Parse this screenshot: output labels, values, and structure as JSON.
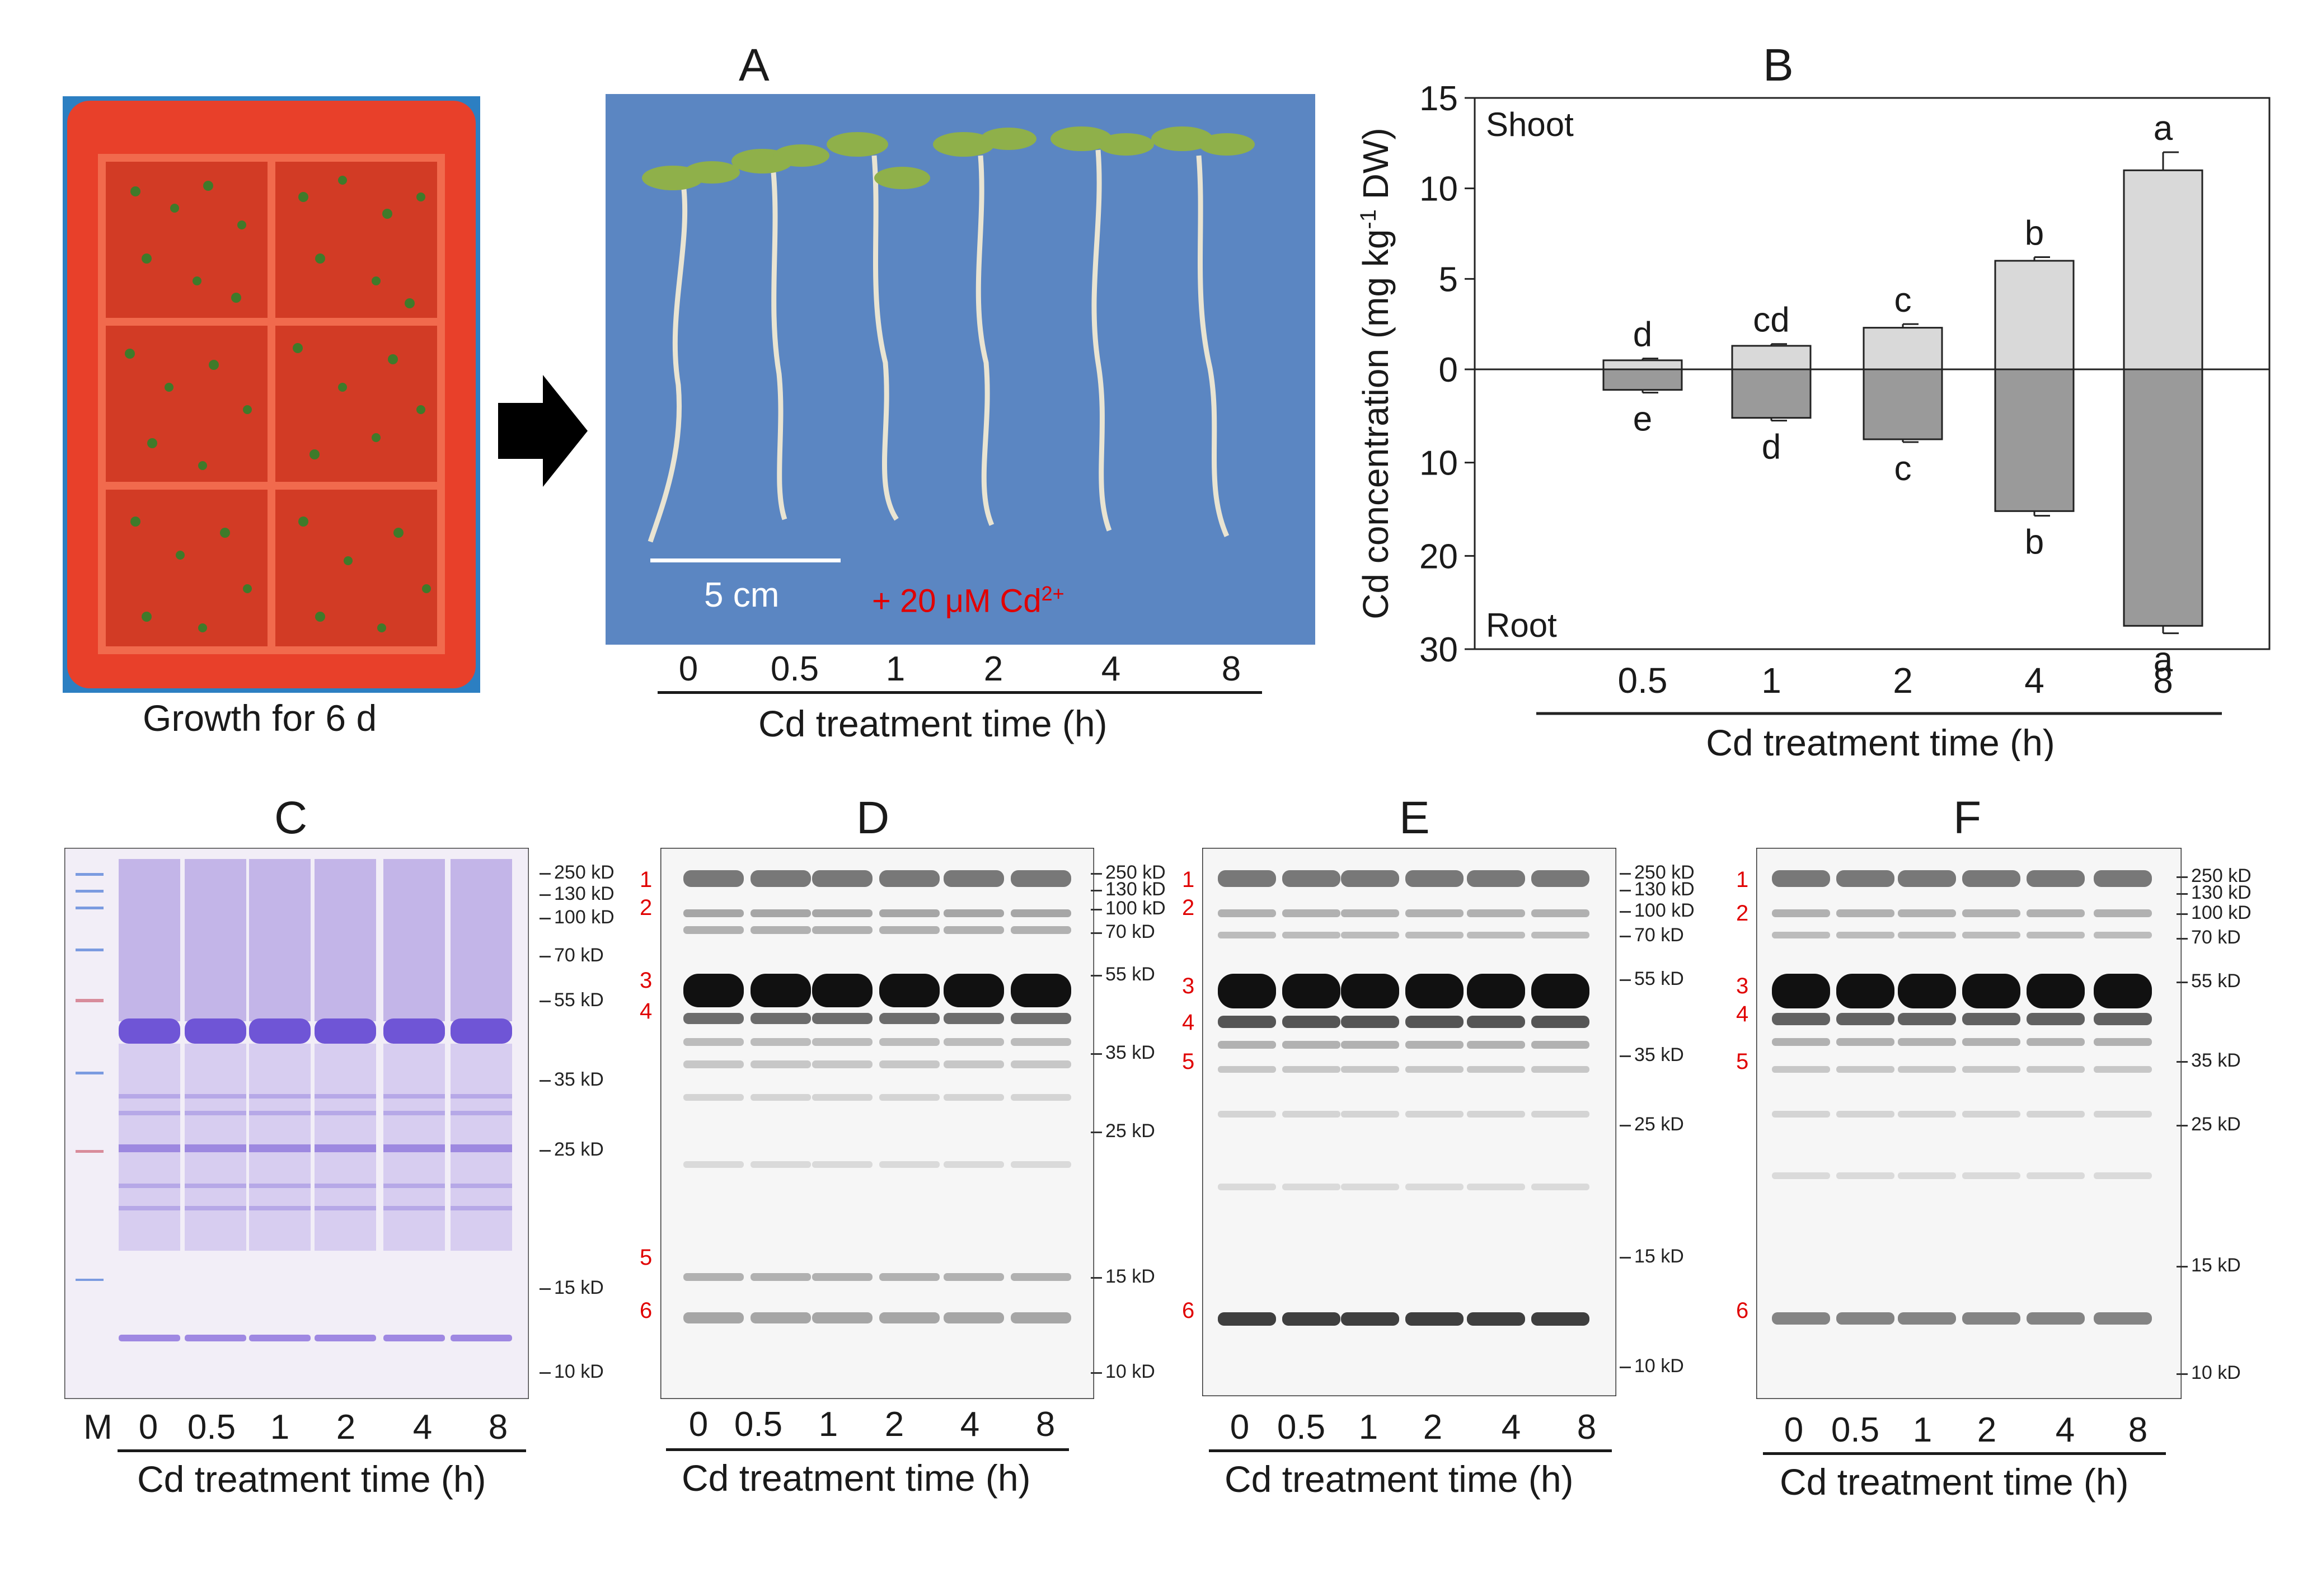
{
  "figure": {
    "tray_caption": "Growth for 6 d",
    "panels": {
      "A": {
        "letter": "A",
        "scale_bar": "5 cm",
        "treatment_text": "+ 20 μM Cd",
        "treatment_sup": "2+",
        "times": [
          "0",
          "0.5",
          "1",
          "2",
          "4",
          "8"
        ],
        "xlabel": "Cd treatment time (h)"
      },
      "B": {
        "letter": "B"
      },
      "C": {
        "letter": "C",
        "lanes": [
          "M",
          "0",
          "0.5",
          "1",
          "2",
          "4",
          "8"
        ],
        "xlabel": "Cd treatment time (h)",
        "markers": [
          "250 kD",
          "130 kD",
          "100 kD",
          "70 kD",
          "55 kD",
          "35 kD",
          "25 kD",
          "15 kD",
          "10 kD"
        ]
      },
      "D": {
        "letter": "D",
        "lanes": [
          "0",
          "0.5",
          "1",
          "2",
          "4",
          "8"
        ],
        "xlabel": "Cd treatment time (h)",
        "markers": [
          "250 kD",
          "130 kD",
          "100 kD",
          "70 kD",
          "55 kD",
          "35 kD",
          "25 kD",
          "15 kD",
          "10 kD"
        ],
        "band_numbers": [
          "1",
          "2",
          "3",
          "4",
          "5",
          "6"
        ]
      },
      "E": {
        "letter": "E",
        "lanes": [
          "0",
          "0.5",
          "1",
          "2",
          "4",
          "8"
        ],
        "xlabel": "Cd treatment time (h)",
        "markers": [
          "250 kD",
          "130 kD",
          "100 kD",
          "70 kD",
          "55 kD",
          "35 kD",
          "25 kD",
          "15 kD",
          "10 kD"
        ],
        "band_numbers": [
          "1",
          "2",
          "3",
          "4",
          "5",
          "6"
        ]
      },
      "F": {
        "letter": "F",
        "lanes": [
          "0",
          "0.5",
          "1",
          "2",
          "4",
          "8"
        ],
        "xlabel": "Cd treatment time (h)",
        "markers": [
          "250 kD",
          "130 kD",
          "100 kD",
          "70 kD",
          "55 kD",
          "35 kD",
          "25 kD",
          "15 kD",
          "10 kD"
        ],
        "band_numbers": [
          "1",
          "2",
          "3",
          "4",
          "5",
          "6"
        ]
      }
    }
  },
  "chart_data": {
    "type": "bar",
    "title": "B",
    "categories": [
      "0.5",
      "1",
      "2",
      "4",
      "8"
    ],
    "xlabel": "Cd treatment time (h)",
    "ylabel": "Cd concentration (mg kg-1 DW)",
    "ylabel_parts": {
      "pre": "Cd concentration (mg kg",
      "sup": "-1",
      "post": " DW)"
    },
    "region_labels": {
      "top": "Shoot",
      "bottom": "Root"
    },
    "shoot_ylim": [
      0,
      15
    ],
    "root_ylim": [
      0,
      30
    ],
    "shoot_ticks": [
      "0",
      "5",
      "10",
      "15"
    ],
    "root_ticks": [
      "10",
      "20",
      "30"
    ],
    "series": [
      {
        "name": "Shoot",
        "color": "#d9d9d9",
        "values": [
          0.5,
          1.3,
          2.3,
          6.0,
          11.0
        ],
        "errors": [
          0.1,
          0.1,
          0.2,
          0.2,
          1.0
        ],
        "letters": [
          "d",
          "cd",
          "c",
          "b",
          "a"
        ]
      },
      {
        "name": "Root",
        "color": "#9a9a9a",
        "values": [
          2.2,
          5.2,
          7.5,
          15.2,
          27.5
        ],
        "errors": [
          0.3,
          0.3,
          0.3,
          0.5,
          0.8
        ],
        "letters": [
          "e",
          "d",
          "c",
          "b",
          "a"
        ]
      }
    ]
  }
}
